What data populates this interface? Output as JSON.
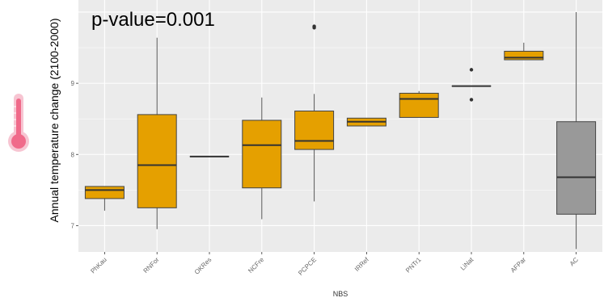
{
  "chart_data": {
    "type": "box",
    "annotation": "p-value=0.001",
    "xlabel": "NBS",
    "ylabel": "Annual temperature change (2100-2000)",
    "ylim": [
      6.63,
      10.17
    ],
    "y_ticks": [
      7,
      8,
      9
    ],
    "grid": true,
    "icon": "thermometer-icon",
    "colors": {
      "nbs_fill": "#E5A000",
      "ac_fill": "#999999",
      "panel_bg": "#EBEBEB",
      "grid": "#FFFFFF",
      "thermometer": "#F06A8A"
    },
    "categories": [
      "PhKau",
      "RNFor",
      "OKRes",
      "NCFre",
      "PCPCE",
      "IRRef",
      "PNTr1",
      "LiNat",
      "AFPar",
      "AC"
    ],
    "boxes": [
      {
        "category": "PhKau",
        "min": 7.21,
        "q1": 7.38,
        "median": 7.5,
        "q3": 7.55,
        "max": 7.55,
        "outliers": []
      },
      {
        "category": "RNFor",
        "min": 6.95,
        "q1": 7.25,
        "median": 7.85,
        "q3": 8.56,
        "max": 9.64,
        "outliers": []
      },
      {
        "category": "OKRes",
        "min": 7.97,
        "q1": 7.97,
        "median": 7.97,
        "q3": 7.97,
        "max": 7.97,
        "outliers": []
      },
      {
        "category": "NCFre",
        "min": 7.09,
        "q1": 7.53,
        "median": 8.13,
        "q3": 8.48,
        "max": 8.8,
        "outliers": []
      },
      {
        "category": "PCPCE",
        "min": 7.34,
        "q1": 8.07,
        "median": 8.19,
        "q3": 8.61,
        "max": 8.85,
        "outliers": [
          9.78,
          9.8
        ]
      },
      {
        "category": "IRRef",
        "min": 8.4,
        "q1": 8.4,
        "median": 8.46,
        "q3": 8.51,
        "max": 8.51,
        "outliers": []
      },
      {
        "category": "PNTr1",
        "min": 8.52,
        "q1": 8.52,
        "median": 8.78,
        "q3": 8.86,
        "max": 8.89,
        "outliers": []
      },
      {
        "category": "LiNat",
        "min": 8.96,
        "q1": 8.96,
        "median": 8.96,
        "q3": 8.96,
        "max": 8.96,
        "outliers": [
          9.19,
          8.77
        ]
      },
      {
        "category": "AFPar",
        "min": 9.33,
        "q1": 9.33,
        "median": 9.36,
        "q3": 9.45,
        "max": 9.57,
        "outliers": []
      },
      {
        "category": "AC",
        "min": 6.67,
        "q1": 7.16,
        "median": 7.68,
        "q3": 8.46,
        "max": 10.0,
        "outliers": []
      }
    ]
  }
}
